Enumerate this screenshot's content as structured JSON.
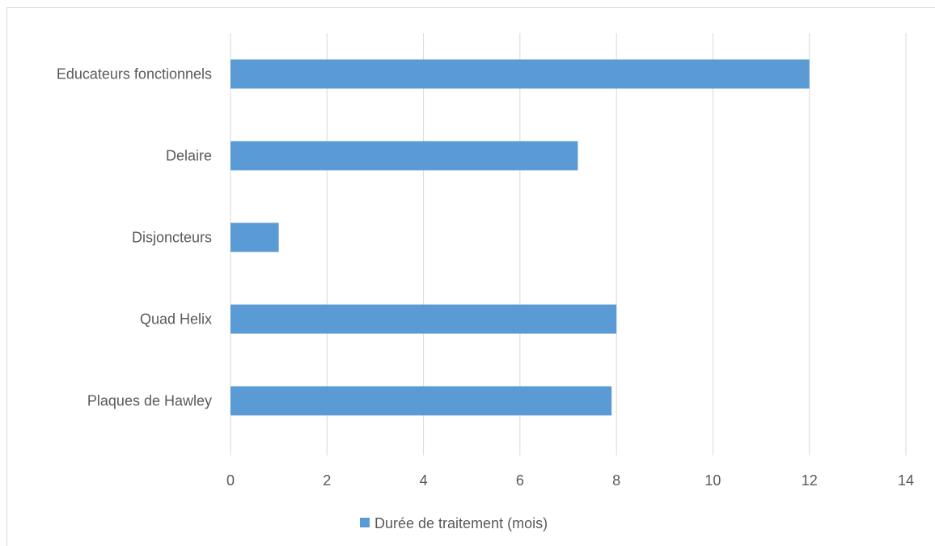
{
  "chart_data": {
    "type": "bar",
    "orientation": "horizontal",
    "categories": [
      "Plaques de Hawley",
      "Quad Helix",
      "Disjoncteurs",
      "Delaire ",
      "Educateurs fonctionnels"
    ],
    "series": [
      {
        "name": "Durée de traitement (mois)",
        "values": [
          7.9,
          8,
          1,
          7.2,
          12
        ],
        "color": "#5b9bd5"
      }
    ],
    "xlim": [
      0,
      14
    ],
    "xticks": [
      0,
      2,
      4,
      6,
      8,
      10,
      12,
      14
    ],
    "grid": "vertical",
    "legend_position": "bottom",
    "gridline_color": "#d9d9d9",
    "label_color": "#595959"
  }
}
